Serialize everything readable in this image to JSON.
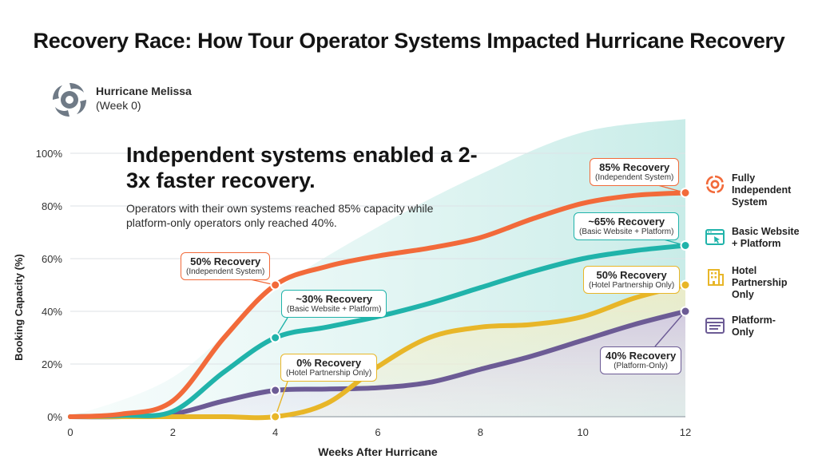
{
  "title": "Recovery Race: How Tour Operator Systems Impacted Hurricane Recovery",
  "event": {
    "name": "Hurricane Melissa",
    "week": "(Week 0)",
    "icon": "hurricane-icon"
  },
  "headline": "Independent systems enabled a 2-3x faster recovery.",
  "subtext": "Operators with their own systems reached 85% capacity while platform-only operators only reached 40%.",
  "legend": [
    {
      "label": "Fully\nIndependent\nSystem",
      "icon": "hurricane-icon",
      "color": "#f26a3a"
    },
    {
      "label": "Basic Website\n+ Platform",
      "icon": "browser-icon",
      "color": "#20b3aa"
    },
    {
      "label": "Hotel\nPartnership\nOnly",
      "icon": "hotel-icon",
      "color": "#e8b628"
    },
    {
      "label": "Platform-\nOnly",
      "icon": "list-icon",
      "color": "#6c5b95"
    }
  ],
  "callouts": {
    "indep_4": {
      "big": "50% Recovery",
      "small": "(Independent System)"
    },
    "basic_4": {
      "big": "~30% Recovery",
      "small": "(Basic Website + Platform)"
    },
    "hotel_4": {
      "big": "0% Recovery",
      "small": "(Hotel Partnership Only)"
    },
    "indep_12": {
      "big": "85% Recovery",
      "small": "(Independent System)"
    },
    "basic_12": {
      "big": "~65% Recovery",
      "small": "(Basic Website + Platform)"
    },
    "hotel_12": {
      "big": "50% Recovery",
      "small": "(Hotel Partnership Only)"
    },
    "plat_12": {
      "big": "40% Recovery",
      "small": "(Platform-Only)"
    }
  },
  "chart_data": {
    "type": "line",
    "xlabel": "Weeks After Hurricane",
    "ylabel": "Booking Capacity (%)",
    "xlim": [
      0,
      12
    ],
    "ylim": [
      0,
      100
    ],
    "x_ticks": [
      0,
      2,
      4,
      6,
      8,
      10,
      12
    ],
    "y_ticks": [
      0,
      20,
      40,
      60,
      80,
      100
    ],
    "y_tick_labels": [
      "0%",
      "20%",
      "40%",
      "60%",
      "80%",
      "100%"
    ],
    "grid": true,
    "legend_position": "right",
    "series": [
      {
        "name": "Fully Independent System",
        "color": "#f26a3a",
        "x": [
          0,
          1,
          2,
          3,
          4,
          5,
          6,
          7,
          8,
          9,
          10,
          11,
          12
        ],
        "y": [
          0,
          1,
          6,
          30,
          50,
          57,
          61,
          64,
          68,
          75,
          81,
          84,
          85
        ],
        "markers": [
          4,
          12
        ]
      },
      {
        "name": "Basic Website + Platform",
        "color": "#20b3aa",
        "x": [
          0,
          1,
          2,
          3,
          4,
          5,
          6,
          7,
          8,
          9,
          10,
          11,
          12
        ],
        "y": [
          0,
          0.5,
          2,
          17,
          30,
          34,
          38,
          43,
          49,
          55,
          60,
          63,
          65
        ],
        "markers": [
          4,
          12
        ]
      },
      {
        "name": "Hotel Partnership Only",
        "color": "#e8b628",
        "x": [
          0,
          1,
          2,
          3,
          4,
          5,
          6,
          7,
          8,
          9,
          10,
          11,
          12
        ],
        "y": [
          0,
          0,
          0,
          0,
          0,
          5,
          19,
          30,
          34,
          35,
          38,
          45,
          50
        ],
        "markers": [
          4,
          12
        ]
      },
      {
        "name": "Platform-Only",
        "color": "#6c5b95",
        "x": [
          0,
          1,
          2,
          3,
          4,
          5,
          6,
          7,
          8,
          9,
          10,
          11,
          12
        ],
        "y": [
          0,
          0,
          1,
          6,
          10,
          10.5,
          11,
          13,
          18,
          23,
          29,
          35,
          40
        ],
        "markers": [
          4,
          12
        ]
      }
    ]
  }
}
